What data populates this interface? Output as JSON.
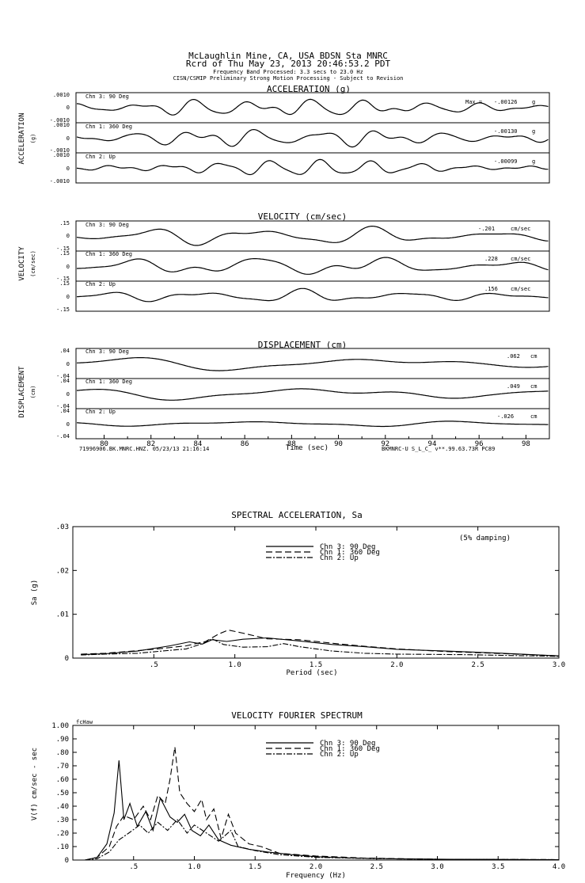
{
  "header": {
    "station_line": "McLaughlin Mine, CA, USA    BDSN Sta MNRC",
    "record_line": "Rcrd of Thu May 23, 2013 20:46:53.2 PDT",
    "band_line": "Frequency Band Processed: 3.3 secs to 23.0 Hz",
    "processing_line": "CISN/CSMIP Preliminary Strong Motion Processing - Subject to Revision"
  },
  "time_series": {
    "x_ticks": [
      "80",
      "82",
      "84",
      "86",
      "88",
      "90",
      "92",
      "94",
      "96",
      "98"
    ],
    "x_label": "Time (sec)",
    "footer_left": "71996906.BK.MNRC.HNZ. 05/23/13 21:16:14",
    "footer_right": "BKMNRC-U  S_L_C_  v**.99.63.73R PC89",
    "panels": [
      {
        "title": "ACCELERATION (g)",
        "side_label": "ACCELERATION",
        "side_unit": "(g)",
        "unit": "g",
        "max_prefix": "Max =",
        "channels": [
          {
            "label": "Chn 3: 90 Deg",
            "max": "-.00126",
            "ticks": [
              ".0010",
              "0",
              "-.0010"
            ]
          },
          {
            "label": "Chn 1: 360 Deg",
            "max": "-.00130",
            "ticks": [
              ".0010",
              "0",
              "-.0010"
            ]
          },
          {
            "label": "Chn 2: Up",
            "max": "-.00099",
            "ticks": [
              ".0010",
              "0",
              "-.0010"
            ]
          }
        ]
      },
      {
        "title": "VELOCITY (cm/sec)",
        "side_label": "VELOCITY",
        "side_unit": "(cm/sec)",
        "unit": "cm/sec",
        "max_prefix": "",
        "channels": [
          {
            "label": "Chn 3: 90 Deg",
            "max": "-.201",
            "ticks": [
              ".15",
              "0",
              "-.15"
            ]
          },
          {
            "label": "Chn 1: 360 Deg",
            "max": ".228",
            "ticks": [
              ".15",
              "0",
              "-.15"
            ]
          },
          {
            "label": "Chn 2: Up",
            "max": ".156",
            "ticks": [
              ".15",
              "0",
              "-.15"
            ]
          }
        ]
      },
      {
        "title": "DISPLACEMENT (cm)",
        "side_label": "DISPLACEMENT",
        "side_unit": "(cm)",
        "unit": "cm",
        "max_prefix": "",
        "channels": [
          {
            "label": "Chn 3: 90 Deg",
            "max": ".062",
            "ticks": [
              ".04",
              "0",
              "-.04"
            ]
          },
          {
            "label": "Chn 1: 360 Deg",
            "max": ".049",
            "ticks": [
              ".04",
              "0",
              "-.04"
            ]
          },
          {
            "label": "Chn 2: Up",
            "max": "-.026",
            "ticks": [
              ".04",
              "0",
              "-.04"
            ]
          }
        ]
      }
    ]
  },
  "chart_data": [
    {
      "type": "line",
      "title": "SPECTRAL ACCELERATION, Sa",
      "xlabel": "Period (sec)",
      "ylabel": "Sa (g)",
      "annotation": "(5% damping)",
      "xlim": [
        0,
        3.0
      ],
      "ylim": [
        0,
        0.03
      ],
      "x_ticks": [
        {
          "v": 0.5,
          "label": ".5"
        },
        {
          "v": 1.0,
          "label": "1.0"
        },
        {
          "v": 1.5,
          "label": "1.5"
        },
        {
          "v": 2.0,
          "label": "2.0"
        },
        {
          "v": 2.5,
          "label": "2.5"
        },
        {
          "v": 3.0,
          "label": "3.0"
        }
      ],
      "y_ticks": [
        {
          "v": 0,
          "label": "0"
        },
        {
          "v": 0.01,
          "label": ".01"
        },
        {
          "v": 0.02,
          "label": ".02"
        },
        {
          "v": 0.03,
          "label": ".03"
        }
      ],
      "legend": "top-center",
      "series": [
        {
          "name": "Chn 3: 90 Deg",
          "dash": "none",
          "points": [
            [
              0.05,
              0.0008
            ],
            [
              0.2,
              0.001
            ],
            [
              0.4,
              0.0016
            ],
            [
              0.6,
              0.0028
            ],
            [
              0.72,
              0.0037
            ],
            [
              0.8,
              0.0032
            ],
            [
              0.86,
              0.0042
            ],
            [
              0.95,
              0.0038
            ],
            [
              1.05,
              0.0043
            ],
            [
              1.2,
              0.0046
            ],
            [
              1.4,
              0.0039
            ],
            [
              1.6,
              0.0031
            ],
            [
              1.8,
              0.0026
            ],
            [
              2.0,
              0.002
            ],
            [
              2.3,
              0.0016
            ],
            [
              2.6,
              0.0012
            ],
            [
              3.0,
              0.0005
            ]
          ]
        },
        {
          "name": "Chn 1: 360 Deg",
          "dash": "8,4",
          "points": [
            [
              0.05,
              0.0009
            ],
            [
              0.2,
              0.0011
            ],
            [
              0.4,
              0.0017
            ],
            [
              0.55,
              0.0022
            ],
            [
              0.7,
              0.0028
            ],
            [
              0.82,
              0.0038
            ],
            [
              0.9,
              0.0055
            ],
            [
              0.96,
              0.0064
            ],
            [
              1.05,
              0.0057
            ],
            [
              1.2,
              0.0044
            ],
            [
              1.4,
              0.0042
            ],
            [
              1.6,
              0.0034
            ],
            [
              1.8,
              0.0027
            ],
            [
              2.0,
              0.0021
            ],
            [
              2.3,
              0.0015
            ],
            [
              2.6,
              0.0011
            ],
            [
              3.0,
              0.0005
            ]
          ]
        },
        {
          "name": "Chn 2: Up",
          "dash": "7,2,2,2",
          "points": [
            [
              0.05,
              0.0007
            ],
            [
              0.2,
              0.0009
            ],
            [
              0.4,
              0.0011
            ],
            [
              0.55,
              0.0016
            ],
            [
              0.7,
              0.0021
            ],
            [
              0.8,
              0.0033
            ],
            [
              0.86,
              0.0044
            ],
            [
              0.93,
              0.0031
            ],
            [
              1.05,
              0.0025
            ],
            [
              1.2,
              0.0026
            ],
            [
              1.3,
              0.0033
            ],
            [
              1.4,
              0.0026
            ],
            [
              1.6,
              0.0016
            ],
            [
              1.8,
              0.0011
            ],
            [
              2.0,
              0.0009
            ],
            [
              2.4,
              0.0008
            ],
            [
              3.0,
              0.0004
            ]
          ]
        }
      ]
    },
    {
      "type": "line",
      "title": "VELOCITY FOURIER SPECTRUM",
      "xlabel": "Frequency (Hz)",
      "ylabel": "V(f)   cm/sec - sec",
      "corner_text": "fcHaw",
      "xlim": [
        0,
        4.0
      ],
      "ylim": [
        0,
        1.0
      ],
      "x_ticks": [
        {
          "v": 0.5,
          "label": ".5"
        },
        {
          "v": 1.0,
          "label": "1.0"
        },
        {
          "v": 1.5,
          "label": "1.5"
        },
        {
          "v": 2.0,
          "label": "2.0"
        },
        {
          "v": 2.5,
          "label": "2.5"
        },
        {
          "v": 3.0,
          "label": "3.0"
        },
        {
          "v": 3.5,
          "label": "3.5"
        },
        {
          "v": 4.0,
          "label": "4.0"
        }
      ],
      "y_ticks": [
        {
          "v": 0,
          "label": "0"
        },
        {
          "v": 0.1,
          "label": ".10"
        },
        {
          "v": 0.2,
          "label": ".20"
        },
        {
          "v": 0.3,
          "label": ".30"
        },
        {
          "v": 0.4,
          "label": ".40"
        },
        {
          "v": 0.5,
          "label": ".50"
        },
        {
          "v": 0.6,
          "label": ".60"
        },
        {
          "v": 0.7,
          "label": ".70"
        },
        {
          "v": 0.8,
          "label": ".80"
        },
        {
          "v": 0.9,
          "label": ".90"
        },
        {
          "v": 1.0,
          "label": "1.00"
        }
      ],
      "legend": "top-center",
      "series": [
        {
          "name": "Chn 3: 90 Deg",
          "dash": "none",
          "points": [
            [
              0.1,
              0
            ],
            [
              0.2,
              0.02
            ],
            [
              0.28,
              0.12
            ],
            [
              0.34,
              0.35
            ],
            [
              0.38,
              0.74
            ],
            [
              0.42,
              0.3
            ],
            [
              0.47,
              0.42
            ],
            [
              0.53,
              0.25
            ],
            [
              0.6,
              0.36
            ],
            [
              0.66,
              0.22
            ],
            [
              0.72,
              0.46
            ],
            [
              0.8,
              0.32
            ],
            [
              0.86,
              0.28
            ],
            [
              0.92,
              0.34
            ],
            [
              0.98,
              0.22
            ],
            [
              1.05,
              0.18
            ],
            [
              1.12,
              0.26
            ],
            [
              1.2,
              0.15
            ],
            [
              1.3,
              0.11
            ],
            [
              1.45,
              0.08
            ],
            [
              1.6,
              0.06
            ],
            [
              1.8,
              0.04
            ],
            [
              2.0,
              0.025
            ],
            [
              2.3,
              0.015
            ],
            [
              2.7,
              0.008
            ],
            [
              3.2,
              0.005
            ],
            [
              4.0,
              0.003
            ]
          ]
        },
        {
          "name": "Chn 1: 360 Deg",
          "dash": "8,4",
          "points": [
            [
              0.1,
              0
            ],
            [
              0.2,
              0.02
            ],
            [
              0.3,
              0.1
            ],
            [
              0.36,
              0.25
            ],
            [
              0.42,
              0.33
            ],
            [
              0.5,
              0.3
            ],
            [
              0.58,
              0.4
            ],
            [
              0.64,
              0.3
            ],
            [
              0.7,
              0.48
            ],
            [
              0.76,
              0.42
            ],
            [
              0.8,
              0.6
            ],
            [
              0.84,
              0.84
            ],
            [
              0.88,
              0.5
            ],
            [
              0.94,
              0.42
            ],
            [
              1.0,
              0.36
            ],
            [
              1.06,
              0.45
            ],
            [
              1.1,
              0.3
            ],
            [
              1.16,
              0.38
            ],
            [
              1.22,
              0.16
            ],
            [
              1.28,
              0.34
            ],
            [
              1.34,
              0.2
            ],
            [
              1.45,
              0.12
            ],
            [
              1.55,
              0.1
            ],
            [
              1.7,
              0.05
            ],
            [
              2.0,
              0.03
            ],
            [
              2.4,
              0.015
            ],
            [
              3.0,
              0.006
            ],
            [
              4.0,
              0.003
            ]
          ]
        },
        {
          "name": "Chn 2: Up",
          "dash": "7,2,2,2",
          "points": [
            [
              0.1,
              0
            ],
            [
              0.2,
              0.01
            ],
            [
              0.3,
              0.06
            ],
            [
              0.38,
              0.15
            ],
            [
              0.46,
              0.2
            ],
            [
              0.55,
              0.26
            ],
            [
              0.62,
              0.2
            ],
            [
              0.7,
              0.28
            ],
            [
              0.78,
              0.22
            ],
            [
              0.86,
              0.3
            ],
            [
              0.94,
              0.2
            ],
            [
              1.0,
              0.26
            ],
            [
              1.1,
              0.2
            ],
            [
              1.2,
              0.14
            ],
            [
              1.3,
              0.22
            ],
            [
              1.36,
              0.1
            ],
            [
              1.5,
              0.07
            ],
            [
              1.7,
              0.04
            ],
            [
              2.0,
              0.02
            ],
            [
              2.5,
              0.01
            ],
            [
              3.0,
              0.006
            ],
            [
              4.0,
              0.003
            ]
          ]
        }
      ]
    }
  ]
}
